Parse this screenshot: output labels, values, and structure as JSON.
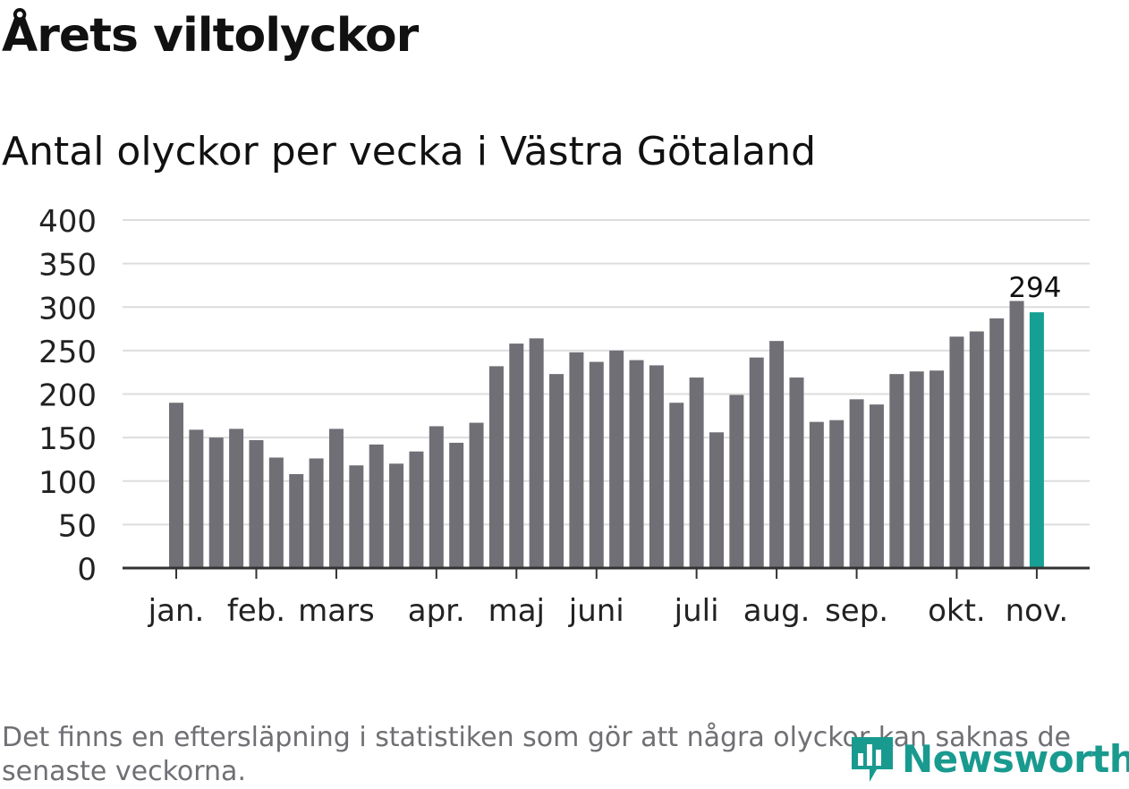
{
  "title": "Årets viltolyckor",
  "subtitle": "Antal olyckor per vecka i Västra Götaland",
  "footnote": "Det finns en eftersläpning i statistiken som gör att några olyckor kan saknas de senaste veckorna.",
  "brand": {
    "name": "Newsworthy",
    "icon": "newsworthy-logo-icon",
    "color": "#199a8f"
  },
  "colors": {
    "bar": "#706f76",
    "highlight": "#16a093",
    "grid": "#dddddd",
    "axis": "#333333"
  },
  "chart_data": {
    "type": "bar",
    "title": "Antal olyckor per vecka i Västra Götaland",
    "xlabel": "",
    "ylabel": "",
    "ylim": [
      0,
      400
    ],
    "yticks": [
      0,
      50,
      100,
      150,
      200,
      250,
      300,
      350,
      400
    ],
    "grid": true,
    "weeks": [
      1,
      2,
      3,
      4,
      5,
      6,
      7,
      8,
      9,
      10,
      11,
      12,
      13,
      14,
      15,
      16,
      17,
      18,
      19,
      20,
      21,
      22,
      23,
      24,
      25,
      26,
      27,
      28,
      29,
      30,
      31,
      32,
      33,
      34,
      35,
      36,
      37,
      38,
      39,
      40,
      41,
      42,
      43,
      44
    ],
    "values": [
      190,
      159,
      150,
      160,
      147,
      127,
      108,
      126,
      160,
      118,
      142,
      120,
      134,
      163,
      144,
      167,
      232,
      258,
      264,
      223,
      248,
      237,
      250,
      239,
      233,
      190,
      219,
      156,
      199,
      242,
      261,
      219,
      168,
      170,
      194,
      188,
      223,
      226,
      227,
      266,
      272,
      287,
      307,
      294
    ],
    "highlight_index": 43,
    "highlight_label": "294",
    "month_labels": [
      {
        "label": "jan.",
        "week": 1
      },
      {
        "label": "feb.",
        "week": 5
      },
      {
        "label": "mars",
        "week": 9
      },
      {
        "label": "apr.",
        "week": 14
      },
      {
        "label": "maj",
        "week": 18
      },
      {
        "label": "juni",
        "week": 22
      },
      {
        "label": "juli",
        "week": 27
      },
      {
        "label": "aug.",
        "week": 31
      },
      {
        "label": "sep.",
        "week": 35
      },
      {
        "label": "okt.",
        "week": 40
      },
      {
        "label": "nov.",
        "week": 44
      }
    ]
  }
}
